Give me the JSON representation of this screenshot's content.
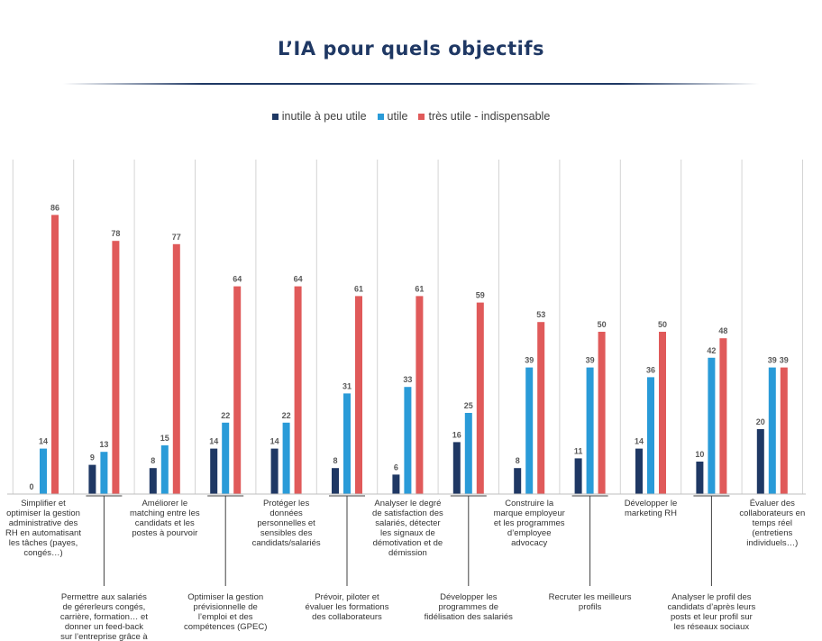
{
  "title": "L’IA pour quels objectifs",
  "legend": {
    "items": [
      {
        "label": "inutile à peu utile",
        "color": "#1f3864"
      },
      {
        "label": "utile",
        "color": "#2a9bd8"
      },
      {
        "label": "très utile - indispensable",
        "color": "#e05a5a"
      }
    ]
  },
  "chart_data": {
    "type": "bar",
    "title": "L’IA pour quels objectifs",
    "ylim": [
      0,
      100
    ],
    "grid": false,
    "legend_position": "top-center",
    "categories": [
      "Simplifier et optimiser la gestion administrative des RH en automatisant les tâches (payes, congés…)",
      "Permettre aux salariés de gérerleurs congés, carrière, formation… et donner un feed-back sur l’entreprise grâce à un",
      "Améliorer le matching entre les candidats et les postes à pourvoir",
      "Optimiser la gestion prévisionnelle de l’emploi et des compétences (GPEC)",
      "Protéger les données personnelles et sensibles des candidats/salariés",
      "Prévoir, piloter et évaluer les formations des collaborateurs",
      "Analyser le degré de satisfaction des salariés, détecter les signaux de démotivation et de démission",
      "Développer les programmes de fidélisation des salariés",
      "Construire la marque employeur et les programmes d’employee advocacy",
      "Recruter les meilleurs profils",
      "Développer le marketing RH",
      "Analyser le profil des candidats d’après leurs posts et leur profil sur les réseaux sociaux",
      "Évaluer des collaborateurs en temps réel (entretiens individuels…)"
    ],
    "series": [
      {
        "name": "inutile à peu utile",
        "color": "#1f3864",
        "values": [
          0,
          9,
          8,
          14,
          14,
          8,
          6,
          16,
          8,
          11,
          14,
          10,
          20
        ]
      },
      {
        "name": "utile",
        "color": "#2a9bd8",
        "values": [
          14,
          13,
          15,
          22,
          22,
          31,
          33,
          25,
          39,
          39,
          36,
          42,
          39
        ]
      },
      {
        "name": "très utile - indispensable",
        "color": "#e05a5a",
        "values": [
          86,
          78,
          77,
          64,
          64,
          61,
          61,
          59,
          53,
          50,
          50,
          48,
          39
        ]
      }
    ]
  }
}
